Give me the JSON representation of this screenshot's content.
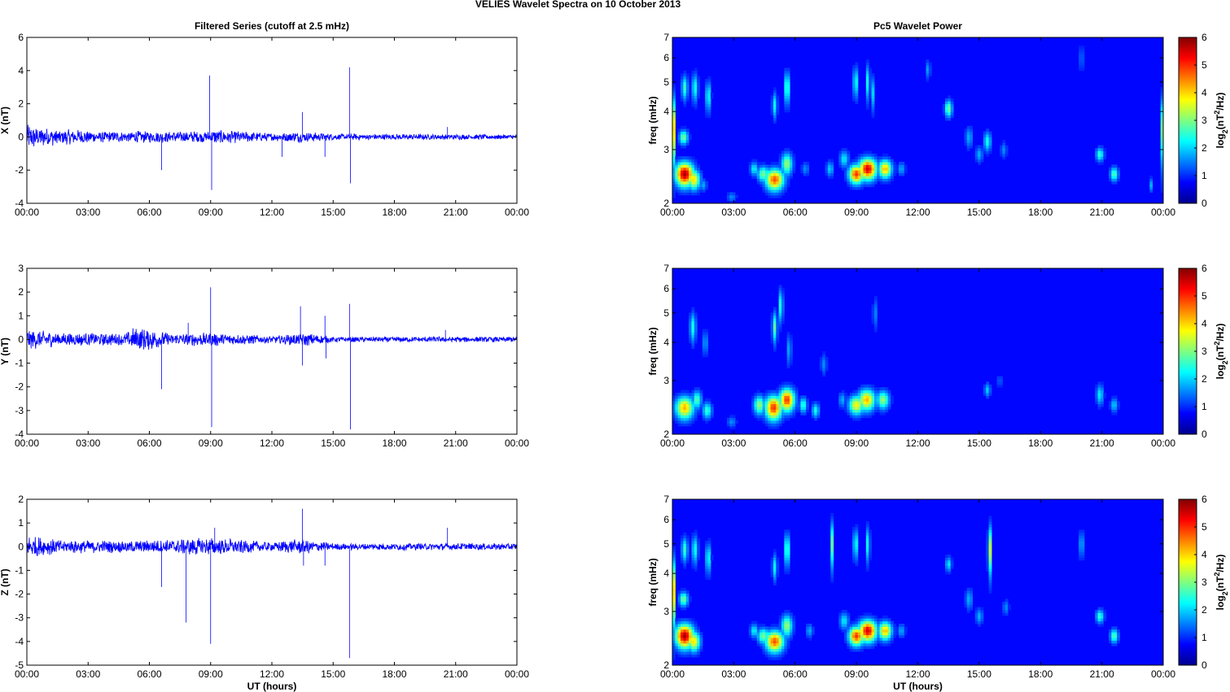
{
  "figure_title": "VELIES Wavelet Spectra on 10 October   2013",
  "colors": {
    "trace": "#0000ff",
    "axis": "#000000",
    "background": "#ffffff"
  },
  "chart_data": [
    {
      "type": "line",
      "title": "Filtered Series (cutoff at 2.5 mHz)",
      "xlabel": "",
      "ylabel": "X (nT)",
      "xticks": [
        "00:00",
        "03:00",
        "06:00",
        "09:00",
        "12:00",
        "15:00",
        "18:00",
        "21:00",
        "00:00"
      ],
      "xlim_hours": [
        0,
        24
      ],
      "ylim": [
        -4,
        6
      ],
      "yticks": [
        -4,
        -2,
        0,
        2,
        4,
        6
      ],
      "series": [
        {
          "noise_envelope": [
            [
              0,
              0.8
            ],
            [
              1.5,
              0.5
            ],
            [
              5,
              0.3
            ],
            [
              5.2,
              0.4
            ],
            [
              6.5,
              0.35
            ],
            [
              8.8,
              0.35
            ],
            [
              9.2,
              0.45
            ],
            [
              12,
              0.25
            ],
            [
              13.3,
              0.35
            ],
            [
              15,
              0.2
            ],
            [
              24,
              0.15
            ]
          ],
          "spikes": [
            [
              6.6,
              -2.0
            ],
            [
              8.95,
              3.7
            ],
            [
              9.05,
              -3.2
            ],
            [
              12.5,
              -1.2
            ],
            [
              13.5,
              1.5
            ],
            [
              14.6,
              -1.2
            ],
            [
              15.8,
              4.2
            ],
            [
              15.85,
              -2.8
            ],
            [
              20.6,
              0.6
            ]
          ]
        }
      ]
    },
    {
      "type": "line",
      "title": "",
      "xlabel": "",
      "ylabel": "Y (nT)",
      "xticks": [
        "00:00",
        "03:00",
        "06:00",
        "09:00",
        "12:00",
        "15:00",
        "18:00",
        "21:00",
        "00:00"
      ],
      "xlim_hours": [
        0,
        24
      ],
      "ylim": [
        -4,
        3
      ],
      "yticks": [
        -4,
        -3,
        -2,
        -1,
        0,
        1,
        2,
        3
      ],
      "series": [
        {
          "noise_envelope": [
            [
              0,
              0.45
            ],
            [
              1.5,
              0.3
            ],
            [
              4.8,
              0.25
            ],
            [
              5.2,
              0.5
            ],
            [
              6.2,
              0.45
            ],
            [
              7,
              0.25
            ],
            [
              9,
              0.3
            ],
            [
              12,
              0.15
            ],
            [
              13.5,
              0.3
            ],
            [
              15,
              0.12
            ],
            [
              24,
              0.12
            ]
          ],
          "spikes": [
            [
              6.6,
              -2.1
            ],
            [
              7.9,
              0.7
            ],
            [
              9.0,
              2.2
            ],
            [
              9.05,
              -3.7
            ],
            [
              13.4,
              1.4
            ],
            [
              13.5,
              -1.1
            ],
            [
              14.6,
              1.0
            ],
            [
              14.65,
              -0.8
            ],
            [
              15.8,
              1.5
            ],
            [
              15.85,
              -3.8
            ],
            [
              20.5,
              0.4
            ]
          ]
        }
      ]
    },
    {
      "type": "line",
      "title": "",
      "xlabel": "UT (hours)",
      "ylabel": "Z (nT)",
      "xticks": [
        "00:00",
        "03:00",
        "06:00",
        "09:00",
        "12:00",
        "15:00",
        "18:00",
        "21:00",
        "00:00"
      ],
      "xlim_hours": [
        0,
        24
      ],
      "ylim": [
        -5,
        2
      ],
      "yticks": [
        -5,
        -4,
        -3,
        -2,
        -1,
        0,
        1,
        2
      ],
      "series": [
        {
          "noise_envelope": [
            [
              0,
              0.5
            ],
            [
              1.5,
              0.3
            ],
            [
              5,
              0.25
            ],
            [
              6.5,
              0.3
            ],
            [
              9,
              0.4
            ],
            [
              12,
              0.2
            ],
            [
              13.5,
              0.35
            ],
            [
              15,
              0.15
            ],
            [
              24,
              0.15
            ]
          ],
          "spikes": [
            [
              6.6,
              -1.7
            ],
            [
              7.8,
              -3.2
            ],
            [
              9.0,
              -4.1
            ],
            [
              9.2,
              0.8
            ],
            [
              13.5,
              1.6
            ],
            [
              13.55,
              -0.8
            ],
            [
              14.6,
              -0.8
            ],
            [
              15.8,
              -4.7
            ],
            [
              20.6,
              0.8
            ]
          ]
        }
      ]
    },
    {
      "type": "heatmap",
      "title": "Pc5 Wavelet Power",
      "xlabel": "",
      "ylabel": "freq (mHz)",
      "xticks": [
        "00:00",
        "03:00",
        "06:00",
        "09:00",
        "12:00",
        "15:00",
        "18:00",
        "21:00",
        "00:00"
      ],
      "xlim_hours": [
        0,
        24
      ],
      "ylim_mHz": [
        2,
        7
      ],
      "y_scale": "log",
      "yticks": [
        2,
        3,
        4,
        5,
        6,
        7
      ],
      "colorbar": {
        "label": "log2(nT²/Hz)",
        "range": [
          0,
          6
        ],
        "ticks": [
          0,
          1,
          2,
          3,
          4,
          5,
          6
        ],
        "colormap": "jet"
      },
      "blobs": [
        [
          0.05,
          3.5,
          0.06,
          0.6,
          4.0
        ],
        [
          0.6,
          2.5,
          0.3,
          0.15,
          5.8
        ],
        [
          0.55,
          3.3,
          0.15,
          0.12,
          3.0
        ],
        [
          1.05,
          2.4,
          0.2,
          0.12,
          4.0
        ],
        [
          0.6,
          4.8,
          0.1,
          0.3,
          2.6
        ],
        [
          1.1,
          4.8,
          0.1,
          0.35,
          2.4
        ],
        [
          1.75,
          4.5,
          0.09,
          0.35,
          2.4
        ],
        [
          1.5,
          2.3,
          0.12,
          0.07,
          1.8
        ],
        [
          2.9,
          2.1,
          0.15,
          0.05,
          1.6
        ],
        [
          4.0,
          2.6,
          0.13,
          0.09,
          2.3
        ],
        [
          4.45,
          2.5,
          0.2,
          0.1,
          3.0
        ],
        [
          5.0,
          2.4,
          0.3,
          0.13,
          4.8
        ],
        [
          5.6,
          2.7,
          0.18,
          0.15,
          3.2
        ],
        [
          5.6,
          4.8,
          0.09,
          0.4,
          2.8
        ],
        [
          5.0,
          4.2,
          0.08,
          0.28,
          2.3
        ],
        [
          6.5,
          2.6,
          0.12,
          0.09,
          1.6
        ],
        [
          7.7,
          2.6,
          0.12,
          0.1,
          2.0
        ],
        [
          8.4,
          2.8,
          0.15,
          0.12,
          2.2
        ],
        [
          9.0,
          2.5,
          0.25,
          0.12,
          5.0
        ],
        [
          9.55,
          2.6,
          0.3,
          0.14,
          5.5
        ],
        [
          10.4,
          2.6,
          0.22,
          0.12,
          4.2
        ],
        [
          8.95,
          5.0,
          0.07,
          0.4,
          2.6
        ],
        [
          9.55,
          5.0,
          0.07,
          0.45,
          2.4
        ],
        [
          9.8,
          4.6,
          0.06,
          0.4,
          2.0
        ],
        [
          11.2,
          2.6,
          0.12,
          0.09,
          1.8
        ],
        [
          12.5,
          5.5,
          0.07,
          0.25,
          1.8
        ],
        [
          13.5,
          4.1,
          0.12,
          0.18,
          3.0
        ],
        [
          14.5,
          3.3,
          0.12,
          0.18,
          1.8
        ],
        [
          15.0,
          2.9,
          0.12,
          0.12,
          1.8
        ],
        [
          15.4,
          3.2,
          0.12,
          0.16,
          2.4
        ],
        [
          16.2,
          3.0,
          0.1,
          0.12,
          1.6
        ],
        [
          20.9,
          2.9,
          0.13,
          0.1,
          2.6
        ],
        [
          21.6,
          2.5,
          0.13,
          0.09,
          2.8
        ],
        [
          20.0,
          6.0,
          0.06,
          0.4,
          1.6
        ],
        [
          23.4,
          2.3,
          0.07,
          0.08,
          1.8
        ],
        [
          23.95,
          3.5,
          0.05,
          0.6,
          3.0
        ]
      ]
    },
    {
      "type": "heatmap",
      "title": "",
      "xlabel": "",
      "ylabel": "freq (mHz)",
      "xticks": [
        "00:00",
        "03:00",
        "06:00",
        "09:00",
        "12:00",
        "15:00",
        "18:00",
        "21:00",
        "00:00"
      ],
      "xlim_hours": [
        0,
        24
      ],
      "ylim_mHz": [
        2,
        7
      ],
      "y_scale": "log",
      "yticks": [
        2,
        3,
        4,
        5,
        6,
        7
      ],
      "colorbar": {
        "label": "log2(nT²/Hz)",
        "range": [
          0,
          6
        ],
        "ticks": [
          0,
          1,
          2,
          3,
          4,
          5,
          6
        ],
        "colormap": "jet"
      },
      "blobs": [
        [
          0.6,
          2.45,
          0.3,
          0.14,
          4.2
        ],
        [
          1.2,
          2.6,
          0.15,
          0.12,
          2.8
        ],
        [
          1.7,
          2.4,
          0.15,
          0.1,
          2.6
        ],
        [
          1.0,
          4.5,
          0.1,
          0.35,
          2.4
        ],
        [
          1.6,
          4.0,
          0.08,
          0.25,
          1.8
        ],
        [
          2.9,
          2.2,
          0.15,
          0.06,
          1.6
        ],
        [
          4.25,
          2.5,
          0.18,
          0.12,
          3.2
        ],
        [
          4.95,
          2.45,
          0.28,
          0.15,
          5.0
        ],
        [
          5.6,
          2.6,
          0.25,
          0.15,
          5.0
        ],
        [
          5.0,
          4.5,
          0.08,
          0.35,
          2.8
        ],
        [
          5.3,
          5.3,
          0.07,
          0.45,
          2.6
        ],
        [
          5.7,
          3.8,
          0.08,
          0.3,
          1.8
        ],
        [
          6.4,
          2.5,
          0.12,
          0.1,
          2.6
        ],
        [
          7.0,
          2.4,
          0.12,
          0.09,
          2.4
        ],
        [
          7.4,
          3.4,
          0.1,
          0.18,
          1.6
        ],
        [
          9.0,
          2.5,
          0.25,
          0.12,
          3.8
        ],
        [
          9.5,
          2.6,
          0.28,
          0.14,
          4.2
        ],
        [
          10.3,
          2.6,
          0.2,
          0.12,
          3.2
        ],
        [
          8.3,
          2.6,
          0.12,
          0.1,
          1.8
        ],
        [
          9.9,
          5.0,
          0.07,
          0.4,
          1.6
        ],
        [
          15.4,
          2.8,
          0.1,
          0.1,
          2.0
        ],
        [
          20.9,
          2.7,
          0.12,
          0.14,
          2.2
        ],
        [
          21.6,
          2.5,
          0.12,
          0.09,
          2.0
        ],
        [
          16.0,
          3.0,
          0.1,
          0.1,
          1.3
        ]
      ]
    },
    {
      "type": "heatmap",
      "title": "",
      "xlabel": "UT (hours)",
      "ylabel": "freq (mHz)",
      "xticks": [
        "00:00",
        "03:00",
        "06:00",
        "09:00",
        "12:00",
        "15:00",
        "18:00",
        "21:00",
        "00:00"
      ],
      "xlim_hours": [
        0,
        24
      ],
      "ylim_mHz": [
        2,
        7
      ],
      "y_scale": "log",
      "yticks": [
        2,
        3,
        4,
        5,
        6,
        7
      ],
      "colorbar": {
        "label": "log2(nT²/Hz)",
        "range": [
          0,
          6
        ],
        "ticks": [
          0,
          1,
          2,
          3,
          4,
          5,
          6
        ],
        "colormap": "jet"
      },
      "blobs": [
        [
          0.05,
          3.5,
          0.06,
          0.6,
          4.0
        ],
        [
          0.6,
          2.5,
          0.3,
          0.15,
          5.8
        ],
        [
          0.55,
          3.3,
          0.15,
          0.12,
          3.0
        ],
        [
          1.05,
          2.4,
          0.2,
          0.12,
          4.0
        ],
        [
          0.6,
          4.8,
          0.1,
          0.3,
          2.6
        ],
        [
          1.1,
          4.8,
          0.1,
          0.35,
          2.4
        ],
        [
          1.75,
          4.5,
          0.09,
          0.35,
          2.4
        ],
        [
          4.0,
          2.6,
          0.13,
          0.09,
          2.3
        ],
        [
          4.45,
          2.5,
          0.2,
          0.1,
          3.0
        ],
        [
          5.0,
          2.4,
          0.3,
          0.13,
          4.8
        ],
        [
          5.6,
          2.7,
          0.18,
          0.15,
          3.2
        ],
        [
          5.6,
          4.8,
          0.09,
          0.4,
          2.8
        ],
        [
          5.0,
          4.2,
          0.08,
          0.28,
          2.3
        ],
        [
          6.7,
          2.6,
          0.12,
          0.09,
          1.8
        ],
        [
          7.8,
          5.0,
          0.05,
          0.6,
          2.8
        ],
        [
          8.4,
          2.8,
          0.15,
          0.12,
          2.2
        ],
        [
          9.0,
          2.5,
          0.25,
          0.12,
          5.0
        ],
        [
          9.55,
          2.6,
          0.3,
          0.14,
          5.5
        ],
        [
          10.4,
          2.6,
          0.22,
          0.12,
          4.2
        ],
        [
          8.95,
          5.0,
          0.07,
          0.4,
          2.6
        ],
        [
          9.55,
          5.0,
          0.07,
          0.45,
          2.4
        ],
        [
          11.2,
          2.6,
          0.12,
          0.09,
          1.8
        ],
        [
          13.5,
          4.3,
          0.1,
          0.16,
          2.2
        ],
        [
          14.5,
          3.3,
          0.12,
          0.18,
          1.8
        ],
        [
          15.0,
          2.9,
          0.12,
          0.12,
          1.8
        ],
        [
          15.5,
          4.8,
          0.05,
          0.6,
          4.0
        ],
        [
          16.3,
          3.1,
          0.1,
          0.12,
          1.6
        ],
        [
          20.0,
          5.0,
          0.07,
          0.35,
          2.0
        ],
        [
          20.9,
          2.9,
          0.13,
          0.1,
          2.6
        ],
        [
          21.6,
          2.5,
          0.13,
          0.09,
          2.8
        ]
      ]
    }
  ]
}
